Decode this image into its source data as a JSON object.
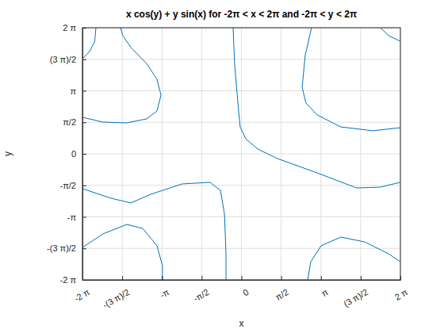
{
  "chart_data": {
    "type": "line",
    "title": "x cos(y) + y sin(x) for -2π < x < 2π and -2π < y < 2π",
    "x_label": "x",
    "y_label": "y",
    "xlim": [
      -6.283185307,
      6.283185307
    ],
    "ylim": [
      -6.283185307,
      6.283185307
    ],
    "xticks": [
      {
        "value": -6.283185307,
        "label": "-2 π"
      },
      {
        "value": -4.71238898,
        "label": "-(3 π)/2"
      },
      {
        "value": -3.141592654,
        "label": "-π"
      },
      {
        "value": -1.570796327,
        "label": "-π/2"
      },
      0,
      {
        "value": 1.570796327,
        "label": "π/2"
      },
      {
        "value": 3.141592654,
        "label": "π"
      },
      {
        "value": 4.71238898,
        "label": "(3 π)/2"
      },
      {
        "value": 6.283185307,
        "label": "2 π"
      }
    ],
    "yticks": [
      {
        "value": -6.283185307,
        "label": "-2 π"
      },
      {
        "value": -4.71238898,
        "label": "-(3 π)/2"
      },
      {
        "value": -3.141592654,
        "label": "-π"
      },
      {
        "value": -1.570796327,
        "label": "-π/2"
      },
      0,
      {
        "value": 1.570796327,
        "label": "π/2"
      },
      {
        "value": 3.141592654,
        "label": "π"
      },
      {
        "value": 4.71238898,
        "label": "(3 π)/2"
      },
      {
        "value": 6.283185307,
        "label": "2 π"
      }
    ],
    "grid": true,
    "series": [
      {
        "color": "#0072bd",
        "line_style": "solid",
        "x": [
          -6.28,
          -6.0,
          -5.8,
          -5.75
        ],
        "values": [
          4.74,
          5.1,
          5.6,
          6.28
        ]
      },
      {
        "color": "#0072bd",
        "line_style": "solid",
        "x": [
          -6.28,
          -5.47,
          -4.53,
          -3.75,
          -3.34,
          -3.18,
          -3.34,
          -3.75,
          -4.37,
          -4.69,
          -4.78
        ],
        "values": [
          1.82,
          1.58,
          1.54,
          1.74,
          2.13,
          2.92,
          3.72,
          4.5,
          5.3,
          5.9,
          6.28
        ]
      },
      {
        "color": "#0072bd",
        "line_style": "solid",
        "x": [
          -0.33,
          -0.27,
          -0.14,
          -0.05,
          0.17,
          0.64,
          1.43,
          2.99,
          4.55,
          5.49,
          6.28
        ],
        "values": [
          6.28,
          4.5,
          2.53,
          1.34,
          0.75,
          0.24,
          -0.24,
          -0.95,
          -1.7,
          -1.66,
          -1.42
        ]
      },
      {
        "color": "#0072bd",
        "line_style": "solid",
        "x": [
          5.5,
          5.82,
          6.28
        ],
        "values": [
          6.28,
          5.89,
          5.61
        ]
      },
      {
        "color": "#0072bd",
        "line_style": "solid",
        "x": [
          2.77,
          2.52,
          2.4,
          2.55,
          2.99,
          3.93,
          5.19,
          6.28
        ],
        "values": [
          6.28,
          4.9,
          3.32,
          2.53,
          1.94,
          1.34,
          1.15,
          1.3
        ]
      },
      {
        "color": "#0072bd",
        "line_style": "solid",
        "x": [
          -6.28,
          -5.16,
          -4.37,
          -3.59,
          -2.34,
          -1.24,
          -0.83,
          -0.67,
          -0.61,
          -0.61
        ],
        "values": [
          -1.74,
          -2.21,
          -2.45,
          -2.02,
          -1.5,
          -1.42,
          -1.82,
          -3.0,
          -4.98,
          -6.28
        ]
      },
      {
        "color": "#0072bd",
        "line_style": "solid",
        "x": [
          -6.28,
          -5.47,
          -4.53,
          -3.9,
          -3.34,
          -3.12,
          -3.12
        ],
        "values": [
          -4.66,
          -3.99,
          -3.52,
          -3.72,
          -4.58,
          -5.57,
          -6.28
        ]
      },
      {
        "color": "#0072bd",
        "line_style": "solid",
        "x": [
          2.62,
          2.74,
          3.15,
          3.93,
          4.87,
          5.81,
          6.28
        ],
        "values": [
          -6.28,
          -5.38,
          -4.58,
          -4.15,
          -4.39,
          -4.98,
          -5.38
        ]
      }
    ]
  }
}
